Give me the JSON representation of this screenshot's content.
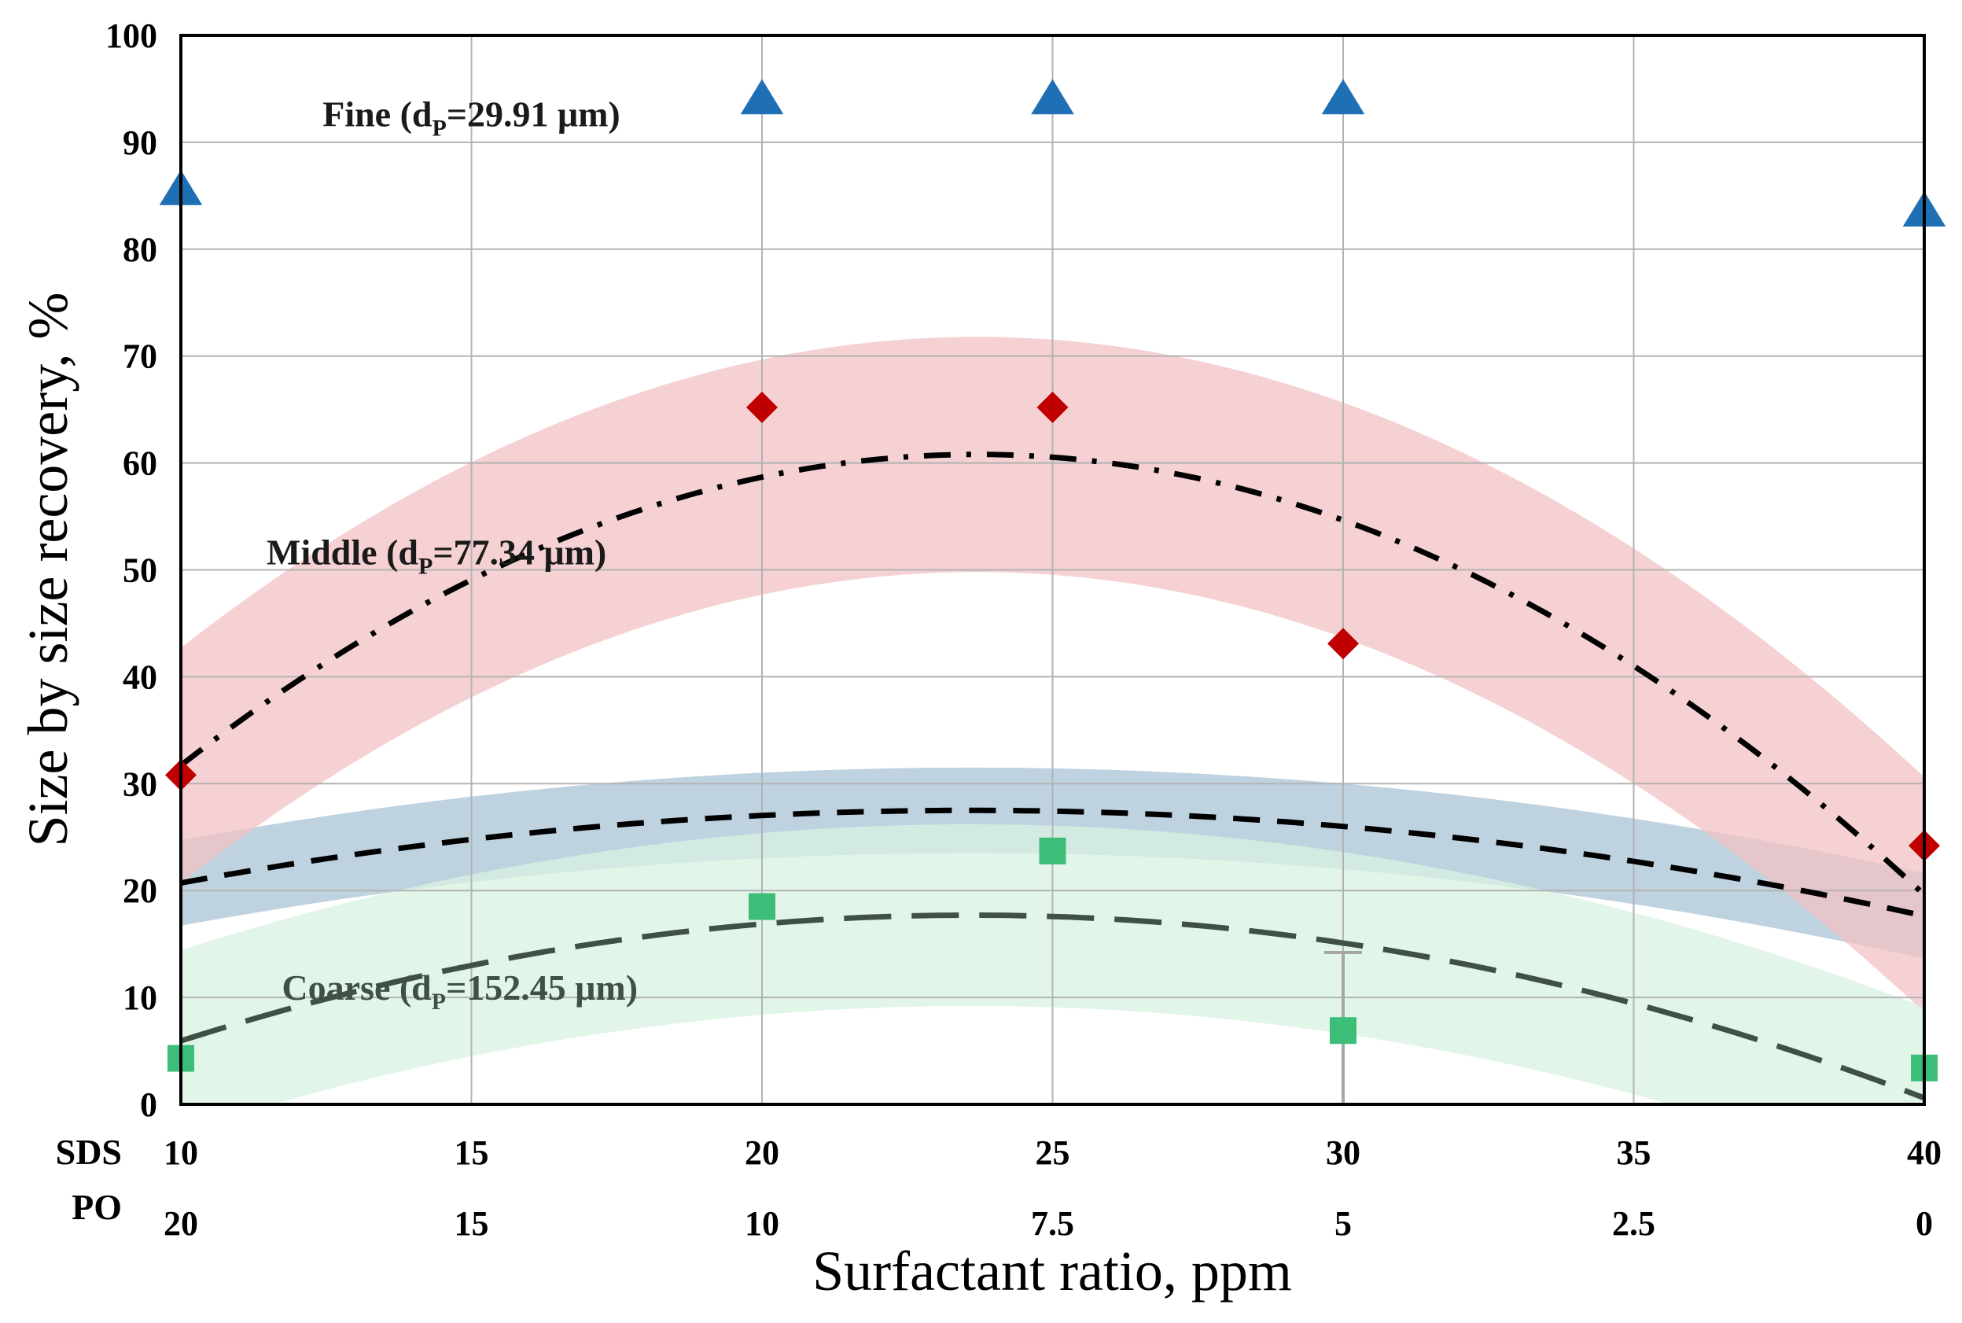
{
  "chart_data": {
    "type": "scatter",
    "xlabel": "Surfactant ratio, ppm",
    "ylabel": "Size by size recovery, %",
    "ylim": [
      0,
      100
    ],
    "yticks": [
      "0",
      "10",
      "20",
      "30",
      "40",
      "50",
      "60",
      "70",
      "80",
      "90",
      "100"
    ],
    "x_rows": [
      {
        "label": "SDS",
        "ticks": [
          "10",
          "15",
          "20",
          "25",
          "30",
          "35",
          "40"
        ]
      },
      {
        "label": "PO",
        "ticks": [
          "20",
          "15",
          "10",
          "7.5",
          "5",
          "2.5",
          "0"
        ]
      }
    ],
    "x_sds": [
      10,
      15,
      20,
      25,
      30,
      35,
      40
    ],
    "grid": true,
    "series": [
      {
        "name": "Fine (dP=29.91 μm)",
        "label": {
          "prefix": "Fine (d",
          "sub": "P",
          "suffix": "=29.91 μm)"
        },
        "marker": "triangle",
        "color": "#1F6FB5",
        "band_color": "#A9C3D5",
        "band_halfwidth": 4,
        "points": [
          [
            10,
            85.5
          ],
          [
            20,
            94.0
          ],
          [
            25,
            94.0
          ],
          [
            30,
            94.0
          ],
          [
            40,
            83.5
          ]
        ],
        "fit_coeffs": [
          0.0367,
          23.6,
          27.5
        ],
        "line_style": "dashed"
      },
      {
        "name": "Middle (dP=77.34 μm)",
        "label": {
          "prefix": "Middle (d",
          "sub": "P",
          "suffix": "=77.34 μm)"
        },
        "marker": "diamond",
        "color": "#C00000",
        "band_color": "#F2C1C4",
        "band_halfwidth": 11,
        "points": [
          [
            10,
            30.8
          ],
          [
            20,
            65.2
          ],
          [
            25,
            65.2
          ],
          [
            30,
            43.1
          ],
          [
            40,
            24.2
          ]
        ],
        "fit_coeffs": [
          0.155,
          23.7,
          60.8
        ],
        "line_style": "dash-dot"
      },
      {
        "name": "Coarse (dP=152.45 μm)",
        "label": {
          "prefix": "Coarse (d",
          "sub": "P",
          "suffix": "=152.45 μm)"
        },
        "marker": "square",
        "color": "#3DBE78",
        "band_color": "#D8F2E1",
        "band_halfwidth": 8.5,
        "points": [
          [
            10,
            4.3
          ],
          [
            20,
            18.5
          ],
          [
            25,
            23.7
          ],
          [
            30,
            6.9
          ],
          [
            40,
            3.4
          ]
        ],
        "fit_coeffs": [
          0.0636,
          23.6,
          17.7
        ],
        "error_bar": {
          "x": 30,
          "low": 0,
          "high": 14.2
        },
        "line_style": "long-dash"
      }
    ]
  }
}
